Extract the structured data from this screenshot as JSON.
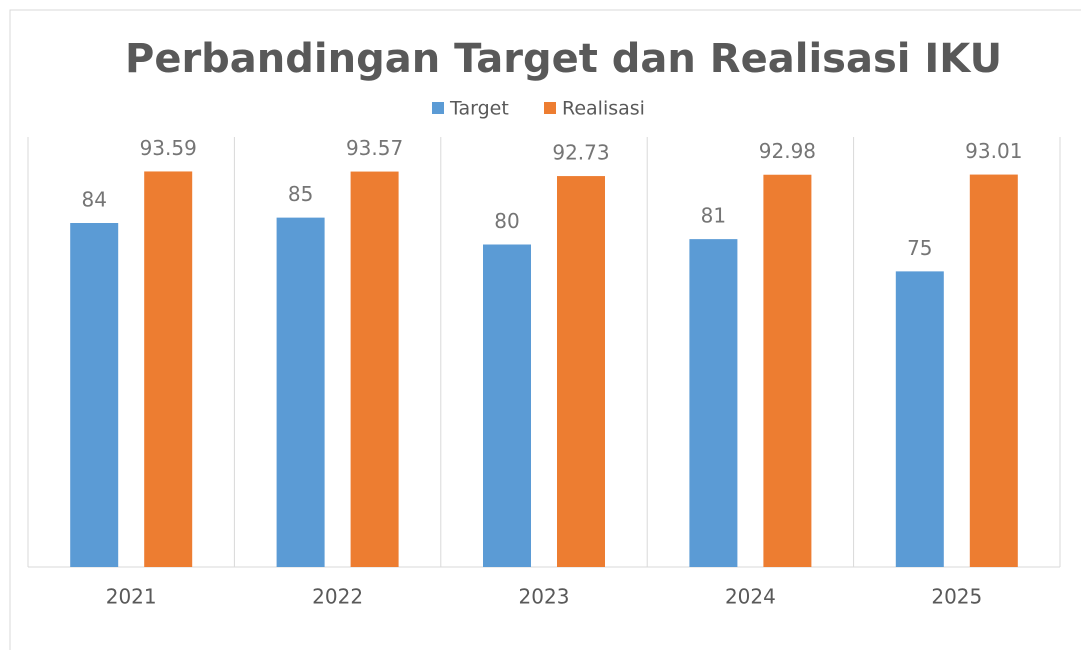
{
  "chart_data": {
    "type": "bar",
    "title": "Perbandingan Target dan Realisasi IKU",
    "categories": [
      "2021",
      "2022",
      "2023",
      "2024",
      "2025"
    ],
    "series": [
      {
        "name": "Target",
        "color": "#5b9bd5",
        "values": [
          84,
          85,
          80,
          81,
          75
        ]
      },
      {
        "name": "Realisasi",
        "color": "#ed7d31",
        "values": [
          93.59,
          93.57,
          92.73,
          92.98,
          93.01
        ]
      }
    ],
    "ylim": [
      20,
      100
    ],
    "legend": "top"
  }
}
